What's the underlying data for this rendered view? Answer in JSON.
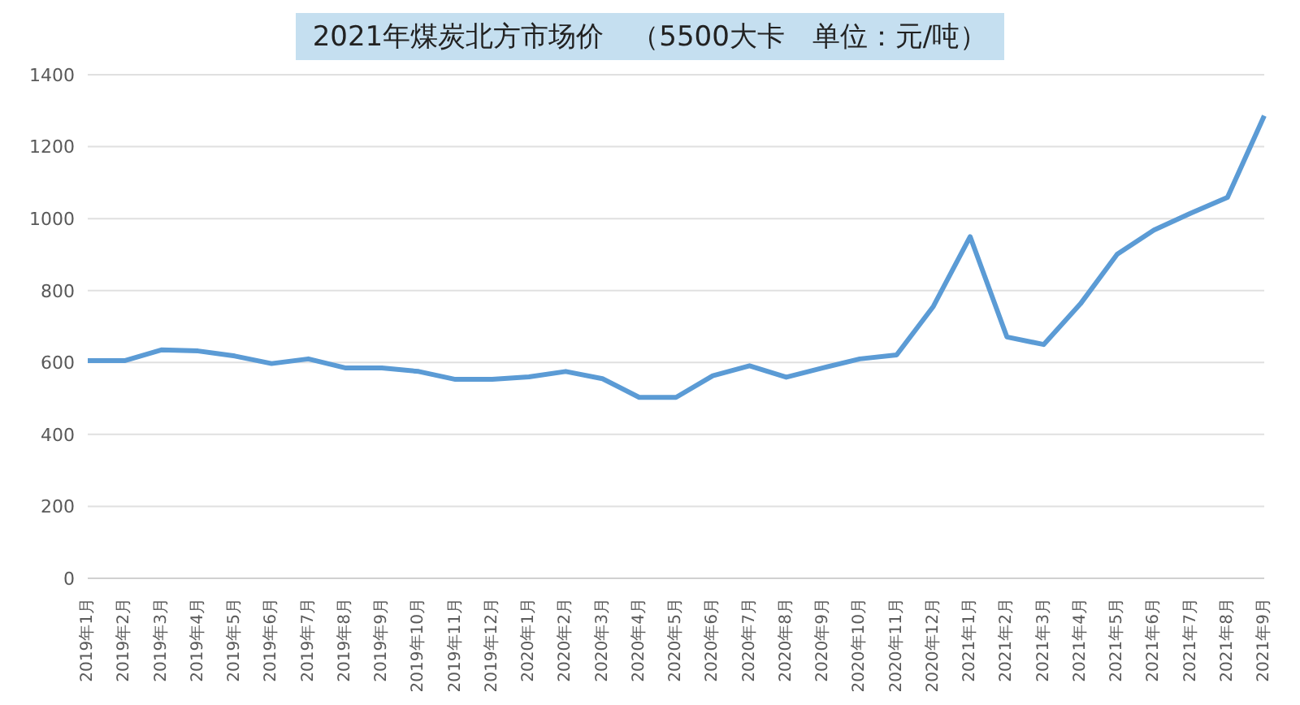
{
  "chart_data": {
    "type": "line",
    "title": "2021年煤炭北方市场价　（5500大卡　单位：元/吨）",
    "categories": [
      "2019年1月",
      "2019年2月",
      "2019年3月",
      "2019年4月",
      "2019年5月",
      "2019年6月",
      "2019年7月",
      "2019年8月",
      "2019年9月",
      "2019年10月",
      "2019年11月",
      "2019年12月",
      "2020年1月",
      "2020年2月",
      "2020年3月",
      "2020年4月",
      "2020年5月",
      "2020年6月",
      "2020年7月",
      "2020年8月",
      "2020年9月",
      "2020年10月",
      "2020年11月",
      "2020年12月",
      "2021年1月",
      "2021年2月",
      "2021年3月",
      "2021年4月",
      "2021年5月",
      "2021年6月",
      "2021年7月",
      "2021年8月",
      "2021年9月"
    ],
    "series": [
      {
        "color": "#5b9bd5",
        "values": [
          605,
          605,
          635,
          632,
          618,
          597,
          610,
          585,
          585,
          575,
          553,
          553,
          560,
          575,
          555,
          503,
          503,
          563,
          591,
          559,
          585,
          610,
          621,
          756,
          950,
          671,
          650,
          763,
          901,
          968,
          1015,
          1059,
          1286
        ]
      }
    ],
    "ylim": [
      0,
      1400
    ],
    "yticks": [
      0,
      200,
      400,
      600,
      800,
      1000,
      1200,
      1400
    ],
    "grid": "y",
    "marker": "none",
    "line_style": "solid"
  }
}
